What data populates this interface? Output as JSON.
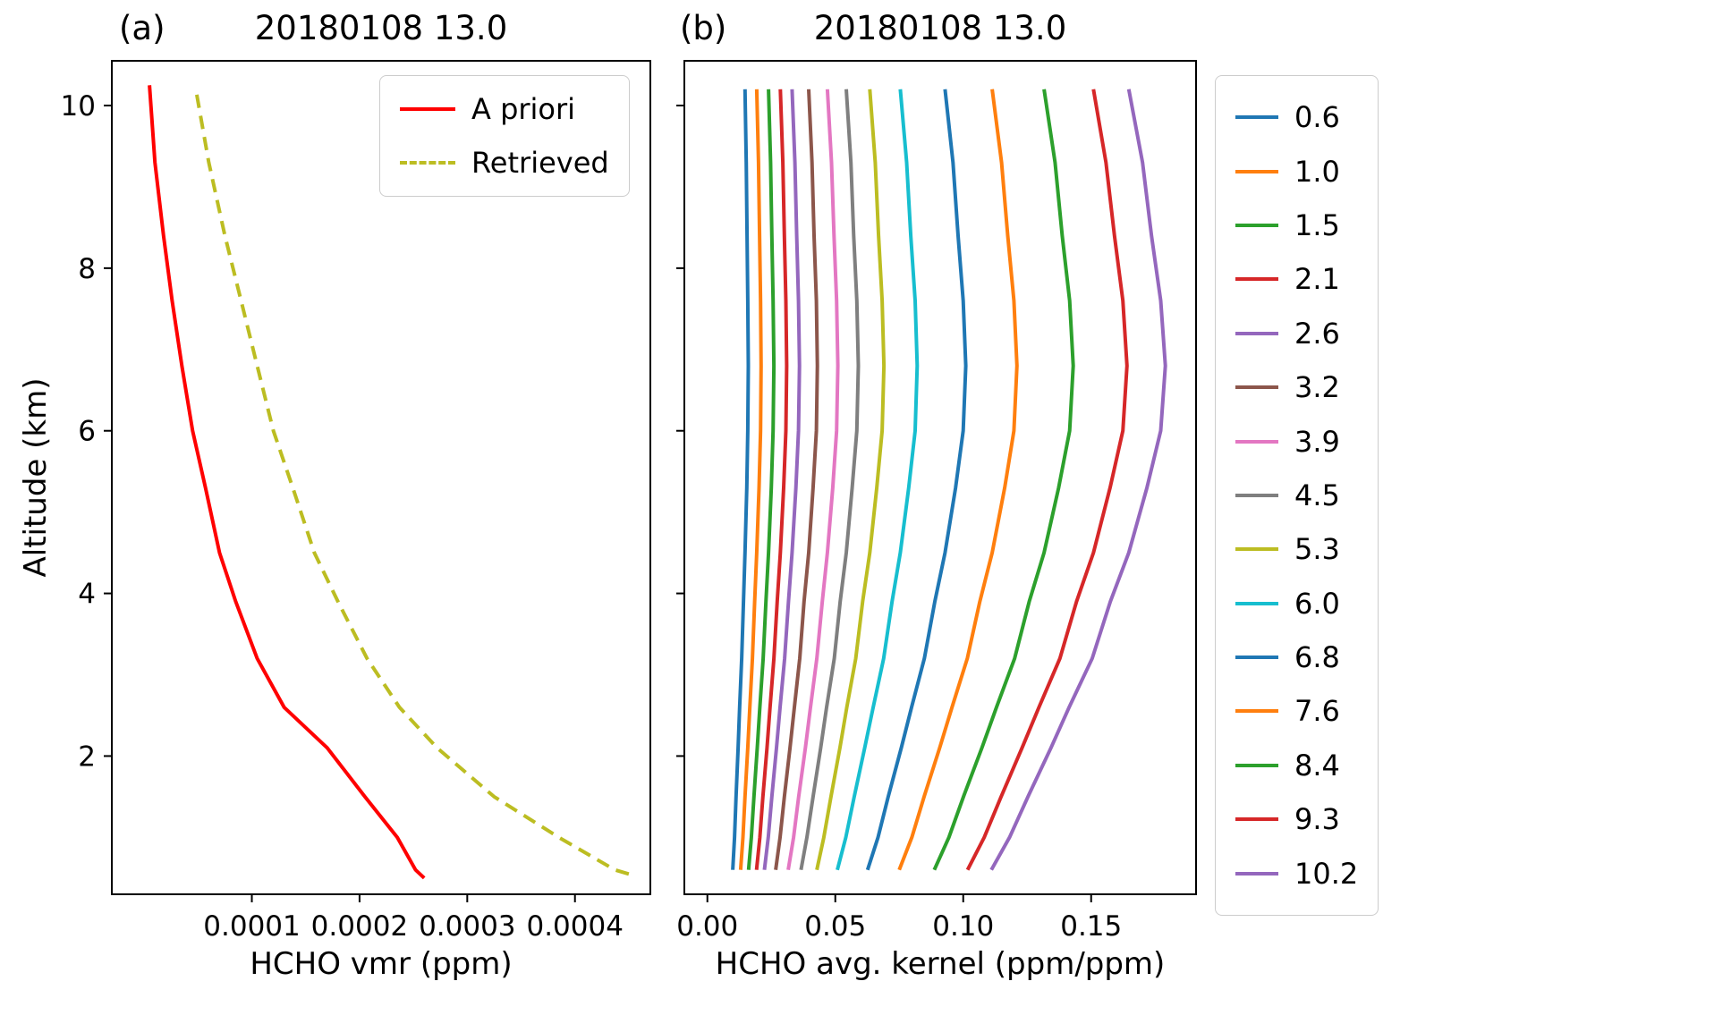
{
  "figure": {
    "background": "#ffffff",
    "frame_color": "#000000",
    "legend_border_color": "#cccccc"
  },
  "chart_data": [
    {
      "type": "line",
      "panel": "a",
      "panel_label": "(a)",
      "title": "20180108 13.0",
      "xlabel": "HCHO vmr (ppm)",
      "ylabel": "Altitude (km)",
      "xlim": [
        -3e-05,
        0.00047
      ],
      "ylim": [
        0.3,
        10.55
      ],
      "xticks": [
        0.0001,
        0.0002,
        0.0003,
        0.0004
      ],
      "xtick_labels": [
        "0.0001",
        "0.0002",
        "0.0003",
        "0.0004"
      ],
      "yticks": [
        2,
        4,
        6,
        8,
        10
      ],
      "ytick_labels": [
        "2",
        "4",
        "6",
        "8",
        "10"
      ],
      "legend_position": "inside-top-right",
      "series": [
        {
          "name": "A priori",
          "color": "#ff0000",
          "style": "solid",
          "y": [
            0.5,
            0.6,
            1.0,
            1.5,
            2.1,
            2.6,
            3.2,
            3.9,
            4.5,
            5.3,
            6.0,
            6.8,
            7.6,
            8.4,
            9.3,
            10.25
          ],
          "x": [
            0.00026,
            0.000252,
            0.000235,
            0.000205,
            0.00017,
            0.00013,
            0.000105,
            8.5e-05,
            7e-05,
            5.7e-05,
            4.5e-05,
            3.5e-05,
            2.6e-05,
            1.8e-05,
            1e-05,
            5e-06
          ]
        },
        {
          "name": "Retrieved",
          "color": "#bcbd22",
          "style": "dashed",
          "y": [
            0.55,
            0.6,
            1.0,
            1.5,
            2.1,
            2.6,
            3.2,
            3.9,
            4.5,
            5.3,
            6.0,
            6.8,
            7.6,
            8.4,
            9.3,
            10.2
          ],
          "x": [
            0.00045,
            0.000437,
            0.000385,
            0.000325,
            0.000272,
            0.000237,
            0.000207,
            0.00018,
            0.000158,
            0.000138,
            0.00012,
            0.000105,
            9e-05,
            7.5e-05,
            6e-05,
            4.8e-05
          ]
        }
      ]
    },
    {
      "type": "line",
      "panel": "b",
      "panel_label": "(b)",
      "title": "20180108 13.0",
      "xlabel": "HCHO avg. kernel (ppm/ppm)",
      "xlim": [
        -0.009,
        0.191
      ],
      "ylim": [
        0.3,
        10.55
      ],
      "xticks": [
        0.0,
        0.05,
        0.1,
        0.15
      ],
      "xtick_labels": [
        "0.00",
        "0.05",
        "0.10",
        "0.15"
      ],
      "yticks": [
        2,
        4,
        6,
        8,
        10
      ],
      "ytick_labels": [
        "",
        "",
        "",
        "",
        ""
      ],
      "legend_position": "outside-right",
      "altitudes_km": [
        0.6,
        1.0,
        1.5,
        2.1,
        2.6,
        3.2,
        3.9,
        4.5,
        5.3,
        6.0,
        6.8,
        7.6,
        8.4,
        9.3,
        10.2
      ],
      "series": [
        {
          "name": "0.6",
          "color": "#1f77b4",
          "style": "solid",
          "values": [
            0.0099,
            0.0106,
            0.0112,
            0.012,
            0.0126,
            0.0134,
            0.0141,
            0.0147,
            0.0154,
            0.0158,
            0.016,
            0.0158,
            0.0155,
            0.0152,
            0.0147
          ]
        },
        {
          "name": "1.0",
          "color": "#ff7f0e",
          "style": "solid",
          "values": [
            0.013,
            0.0139,
            0.0147,
            0.0158,
            0.0166,
            0.0176,
            0.0185,
            0.0193,
            0.0202,
            0.0208,
            0.021,
            0.0208,
            0.0204,
            0.02,
            0.0193
          ]
        },
        {
          "name": "1.5",
          "color": "#2ca02c",
          "style": "solid",
          "values": [
            0.0161,
            0.0172,
            0.0182,
            0.0195,
            0.0205,
            0.0218,
            0.0229,
            0.0239,
            0.025,
            0.0257,
            0.026,
            0.0257,
            0.0252,
            0.0247,
            0.0239
          ]
        },
        {
          "name": "2.1",
          "color": "#d62728",
          "style": "solid",
          "values": [
            0.0192,
            0.0205,
            0.0217,
            0.0233,
            0.0245,
            0.026,
            0.0273,
            0.0285,
            0.0298,
            0.0307,
            0.031,
            0.0307,
            0.0301,
            0.0295,
            0.0285
          ]
        },
        {
          "name": "2.6",
          "color": "#9467bd",
          "style": "solid",
          "values": [
            0.0223,
            0.0238,
            0.0252,
            0.027,
            0.0284,
            0.0302,
            0.0317,
            0.0331,
            0.0346,
            0.0356,
            0.036,
            0.0356,
            0.0349,
            0.0342,
            0.0331
          ]
        },
        {
          "name": "3.2",
          "color": "#8c564b",
          "style": "solid",
          "values": [
            0.0267,
            0.0284,
            0.0301,
            0.0323,
            0.034,
            0.0361,
            0.0378,
            0.0396,
            0.0413,
            0.0426,
            0.043,
            0.0426,
            0.0417,
            0.0409,
            0.0396
          ]
        },
        {
          "name": "3.9",
          "color": "#e377c2",
          "style": "solid",
          "values": [
            0.0316,
            0.0337,
            0.0357,
            0.0383,
            0.0403,
            0.0428,
            0.0449,
            0.0469,
            0.049,
            0.0505,
            0.051,
            0.0505,
            0.0495,
            0.0485,
            0.0469
          ]
        },
        {
          "name": "4.5",
          "color": "#7f7f7f",
          "style": "solid",
          "values": [
            0.0366,
            0.0389,
            0.0413,
            0.0443,
            0.0466,
            0.0496,
            0.0519,
            0.0543,
            0.0566,
            0.0584,
            0.059,
            0.0584,
            0.0572,
            0.0561,
            0.0543
          ]
        },
        {
          "name": "5.3",
          "color": "#bcbd22",
          "style": "solid",
          "values": [
            0.0428,
            0.0455,
            0.0483,
            0.0518,
            0.0545,
            0.058,
            0.0607,
            0.0635,
            0.0662,
            0.0683,
            0.069,
            0.0683,
            0.0669,
            0.0656,
            0.0635
          ]
        },
        {
          "name": "6.0",
          "color": "#17becf",
          "style": "solid",
          "values": [
            0.0508,
            0.0541,
            0.0574,
            0.0615,
            0.0648,
            0.0689,
            0.0722,
            0.0754,
            0.0787,
            0.0812,
            0.082,
            0.0812,
            0.0795,
            0.0779,
            0.0754
          ]
        },
        {
          "name": "6.8",
          "color": "#1f77b4",
          "style": "solid",
          "values": [
            0.0626,
            0.0667,
            0.0707,
            0.0758,
            0.0798,
            0.0848,
            0.0889,
            0.0929,
            0.097,
            0.1,
            0.101,
            0.1,
            0.098,
            0.096,
            0.0929
          ]
        },
        {
          "name": "7.6",
          "color": "#ff7f0e",
          "style": "solid",
          "values": [
            0.075,
            0.0799,
            0.0847,
            0.0908,
            0.0956,
            0.1016,
            0.1065,
            0.1113,
            0.1162,
            0.1198,
            0.121,
            0.1198,
            0.1174,
            0.115,
            0.1113
          ]
        },
        {
          "name": "8.4",
          "color": "#2ca02c",
          "style": "solid",
          "values": [
            0.0887,
            0.0944,
            0.1001,
            0.1073,
            0.113,
            0.1201,
            0.1258,
            0.1316,
            0.1373,
            0.1416,
            0.143,
            0.1416,
            0.1387,
            0.1359,
            0.1316
          ]
        },
        {
          "name": "9.3",
          "color": "#d62728",
          "style": "solid",
          "values": [
            0.1017,
            0.1082,
            0.1148,
            0.123,
            0.1296,
            0.1378,
            0.1443,
            0.1509,
            0.1574,
            0.1624,
            0.164,
            0.1624,
            0.1591,
            0.1558,
            0.1509
          ]
        },
        {
          "name": "10.2",
          "color": "#9467bd",
          "style": "solid",
          "values": [
            0.111,
            0.1181,
            0.1253,
            0.1343,
            0.1414,
            0.1504,
            0.1575,
            0.1647,
            0.1718,
            0.1772,
            0.179,
            0.1772,
            0.1736,
            0.1701,
            0.1647
          ]
        }
      ]
    }
  ]
}
